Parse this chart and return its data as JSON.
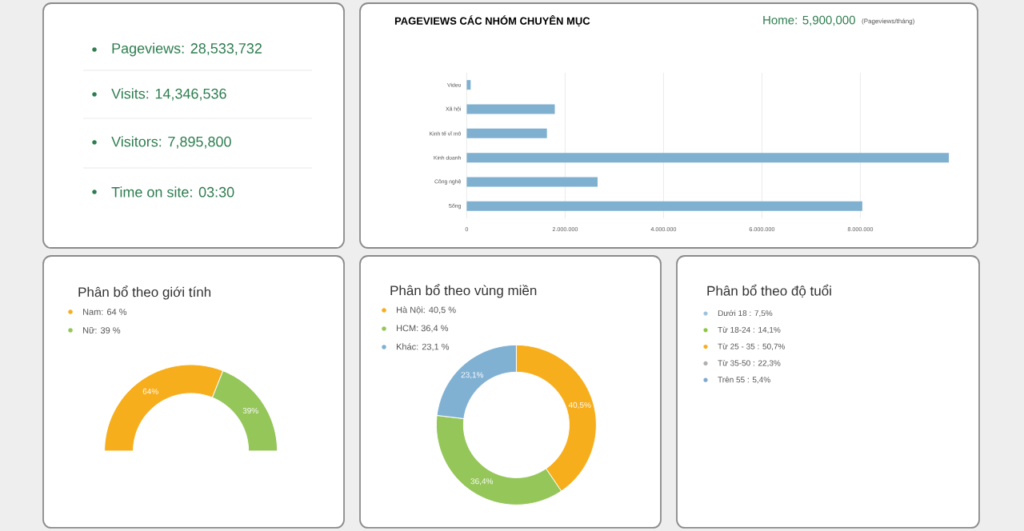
{
  "chart_data": [
    {
      "type": "other",
      "annotations": [
        "Pageviews: 28,533,732",
        "Visits: 14,346,536",
        "Visitors: 7,895,800",
        "Time on site:  03:30"
      ]
    },
    {
      "type": "bar",
      "orientation": "horizontal",
      "title": "PAGEVIEWS CÁC NHÓM CHUYÊN MỤC",
      "annotations": [
        "Home: 5,900,000",
        "(Pageviews/tháng)"
      ],
      "categories": [
        "Video",
        "Xã hội",
        "Kinh tế vĩ mô",
        "Kinh doanh",
        "Công nghệ",
        "Sống"
      ],
      "values": [
        80000,
        1790000,
        1630000,
        9800000,
        2660000,
        8040000
      ],
      "color": "#7fb0d0",
      "xlim": [
        0,
        9850000
      ],
      "xticks": [
        0,
        {
          "value": 2000000,
          "label": "2.000.000"
        },
        {
          "value": 4000000,
          "label": "4.000.000"
        },
        {
          "value": 6000000,
          "label": "6.000.000"
        },
        {
          "value": 8000000,
          "label": "8.000.000"
        }
      ],
      "grid": "x"
    },
    {
      "type": "donut",
      "title": "Phân bổ theo giới tính",
      "categories": [
        "Nam: 64 %",
        "Nữ: 39 %"
      ],
      "values": [
        64,
        39
      ],
      "colors": [
        "#f7ae1c",
        "#95c65a"
      ],
      "value_labels": [
        "64%",
        "39%"
      ],
      "legend": "top left"
    },
    {
      "type": "donut",
      "title": "Phân bổ theo vùng miền",
      "categories": [
        "Hà Nội: 40,5 %",
        "HCM: 36,4 %",
        "Khác: 23,1 %"
      ],
      "values": [
        40.5,
        36.4,
        23.1
      ],
      "colors": [
        "#f7ae1c",
        "#95c65a",
        "#80b1d3"
      ],
      "value_labels": [
        "40,5%",
        "36,4%",
        "23,1%"
      ],
      "legend": "top left"
    },
    {
      "type": "other",
      "title": "Phân bổ theo độ tuổi",
      "annotations": [
        "Dưới 18 : 7,5%",
        "Từ 18-24 : 14,1%",
        "Từ 25 - 35 : 50,7%",
        "Từ 35-50 : 22,3%",
        "Trên 55 : 5,4%"
      ],
      "colors": [
        "#9cc3de",
        "#8cc63f",
        "#f7ae1c",
        "#b0b0b0",
        "#7fa9d0"
      ]
    }
  ]
}
